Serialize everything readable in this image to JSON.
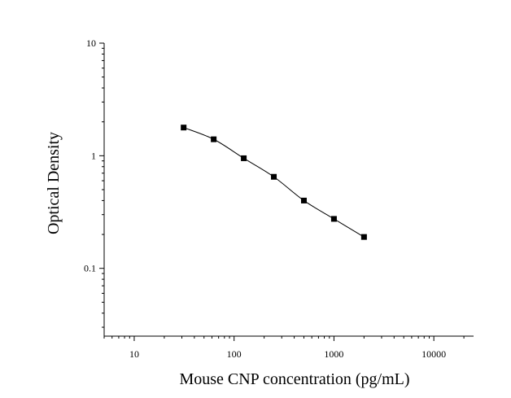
{
  "chart_data": {
    "type": "scatter",
    "title": "",
    "xlabel": "Mouse CNP concentration (pg/mL)",
    "ylabel": "Optical Density",
    "xscale": "log",
    "yscale": "log",
    "xlim": [
      5,
      25000
    ],
    "ylim": [
      0.025,
      10
    ],
    "xticks": [
      10,
      100,
      1000,
      10000
    ],
    "xtick_labels": [
      "10",
      "100",
      "1000",
      "10000"
    ],
    "yticks": [
      0.1,
      1,
      10
    ],
    "ytick_labels": [
      "0.1",
      "1",
      "10"
    ],
    "grid": false,
    "legend": "none",
    "series": [
      {
        "marker": "square",
        "x": [
          31.25,
          62.5,
          125,
          250,
          500,
          1000,
          2000
        ],
        "y": [
          1.78,
          1.4,
          0.95,
          0.65,
          0.4,
          0.275,
          0.19
        ],
        "fit_curve": true
      }
    ],
    "colors": {
      "marker": "#000000",
      "curve": "#000000",
      "axis": "#000000"
    }
  }
}
